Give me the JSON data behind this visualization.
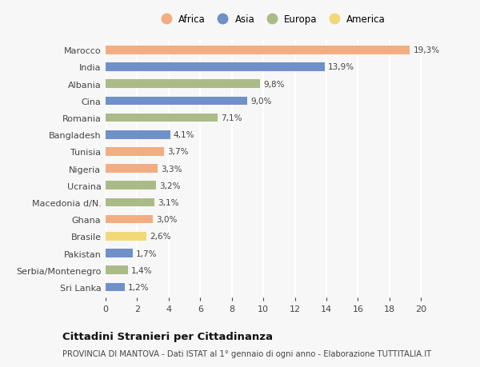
{
  "categories": [
    "Marocco",
    "India",
    "Albania",
    "Cina",
    "Romania",
    "Bangladesh",
    "Tunisia",
    "Nigeria",
    "Ucraina",
    "Macedonia d/N.",
    "Ghana",
    "Brasile",
    "Pakistan",
    "Serbia/Montenegro",
    "Sri Lanka"
  ],
  "values": [
    19.3,
    13.9,
    9.8,
    9.0,
    7.1,
    4.1,
    3.7,
    3.3,
    3.2,
    3.1,
    3.0,
    2.6,
    1.7,
    1.4,
    1.2
  ],
  "labels": [
    "19,3%",
    "13,9%",
    "9,8%",
    "9,0%",
    "7,1%",
    "4,1%",
    "3,7%",
    "3,3%",
    "3,2%",
    "3,1%",
    "3,0%",
    "2,6%",
    "1,7%",
    "1,4%",
    "1,2%"
  ],
  "continents": [
    "Africa",
    "Asia",
    "Europa",
    "Asia",
    "Europa",
    "Asia",
    "Africa",
    "Africa",
    "Europa",
    "Europa",
    "Africa",
    "America",
    "Asia",
    "Europa",
    "Asia"
  ],
  "colors": {
    "Africa": "#F2AD82",
    "Asia": "#7090C8",
    "Europa": "#AABB88",
    "America": "#F2D878"
  },
  "legend_order": [
    "Africa",
    "Asia",
    "Europa",
    "America"
  ],
  "title": "Cittadini Stranieri per Cittadinanza",
  "subtitle": "PROVINCIA DI MANTOVA - Dati ISTAT al 1° gennaio di ogni anno - Elaborazione TUTTITALIA.IT",
  "xlim": [
    0,
    21
  ],
  "xticks": [
    0,
    2,
    4,
    6,
    8,
    10,
    12,
    14,
    16,
    18,
    20
  ],
  "background_color": "#f7f7f7",
  "grid_color": "#ffffff",
  "bar_height": 0.5
}
